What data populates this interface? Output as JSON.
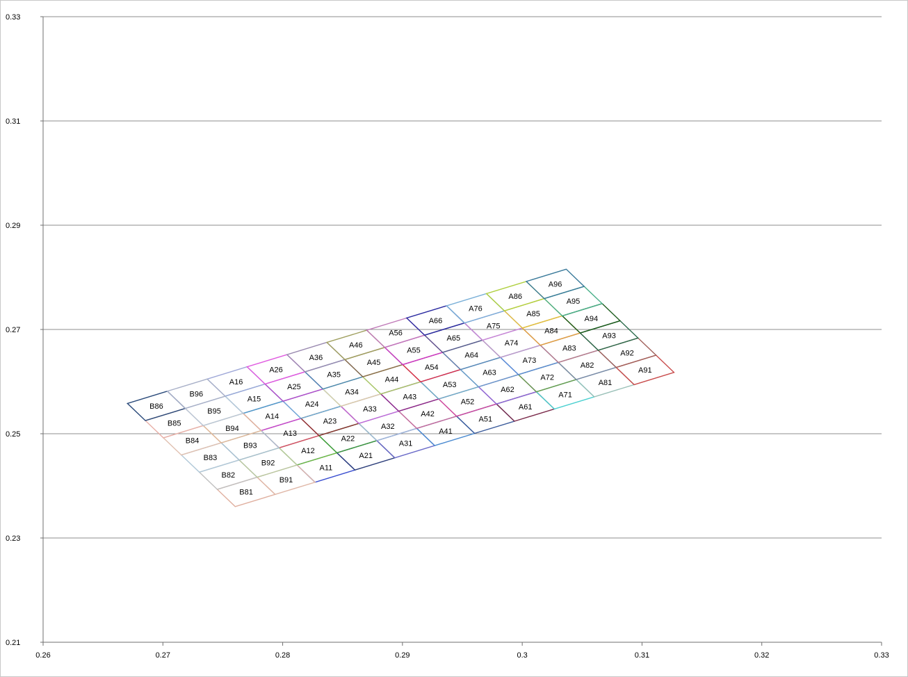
{
  "chart_data": {
    "type": "scatter",
    "title": "",
    "xlabel": "",
    "ylabel": "",
    "xlim": [
      0.26,
      0.33
    ],
    "ylim": [
      0.21,
      0.33
    ],
    "x_ticks": [
      "0.26",
      "0.27",
      "0.28",
      "0.29",
      "0.3",
      "0.31",
      "0.32",
      "0.33"
    ],
    "y_ticks": [
      "0.21",
      "0.23",
      "0.25",
      "0.27",
      "0.29",
      "0.31",
      "0.33"
    ],
    "grid": "horizontal major gridlines",
    "legend": "none",
    "grid_origin": [
      0.2827,
      0.2407
    ],
    "grid_u_step": [
      0.00333,
      0.00234
    ],
    "grid_v_step": [
      -0.0015,
      0.0033
    ],
    "series": [
      {
        "label": "A11",
        "cell": [
          1,
          1
        ],
        "color": "#3b4fd0"
      },
      {
        "label": "A12",
        "cell": [
          1,
          2
        ],
        "color": "#6fbf3a"
      },
      {
        "label": "A13",
        "cell": [
          1,
          3
        ],
        "color": "#d84a6a"
      },
      {
        "label": "A14",
        "cell": [
          1,
          4
        ],
        "color": "#c04ad0"
      },
      {
        "label": "A15",
        "cell": [
          1,
          5
        ],
        "color": "#4aa0c8"
      },
      {
        "label": "A16",
        "cell": [
          1,
          6
        ],
        "color": "#9fa8d8"
      },
      {
        "label": "A21",
        "cell": [
          2,
          1
        ],
        "color": "#2c3e7a"
      },
      {
        "label": "A22",
        "cell": [
          2,
          2
        ],
        "color": "#3a9a3a"
      },
      {
        "label": "A23",
        "cell": [
          2,
          3
        ],
        "color": "#8a3030"
      },
      {
        "label": "A24",
        "cell": [
          2,
          4
        ],
        "color": "#6ab0d8"
      },
      {
        "label": "A25",
        "cell": [
          2,
          5
        ],
        "color": "#b44ac8"
      },
      {
        "label": "A26",
        "cell": [
          2,
          6
        ],
        "color": "#e05ae0"
      },
      {
        "label": "A31",
        "cell": [
          3,
          1
        ],
        "color": "#6a6ac8"
      },
      {
        "label": "A32",
        "cell": [
          3,
          2
        ],
        "color": "#a0b8d8"
      },
      {
        "label": "A33",
        "cell": [
          3,
          3
        ],
        "color": "#c06ad8"
      },
      {
        "label": "A34",
        "cell": [
          3,
          4
        ],
        "color": "#d8d0a8"
      },
      {
        "label": "A35",
        "cell": [
          3,
          5
        ],
        "color": "#4a88b0"
      },
      {
        "label": "A36",
        "cell": [
          3,
          6
        ],
        "color": "#9a8ab0"
      },
      {
        "label": "A41",
        "cell": [
          4,
          1
        ],
        "color": "#4a8ad0"
      },
      {
        "label": "A42",
        "cell": [
          4,
          2
        ],
        "color": "#c86a9a"
      },
      {
        "label": "A43",
        "cell": [
          4,
          3
        ],
        "color": "#8a2a8a"
      },
      {
        "label": "A44",
        "cell": [
          4,
          4
        ],
        "color": "#a8c86a"
      },
      {
        "label": "A45",
        "cell": [
          4,
          5
        ],
        "color": "#8a6a4a"
      },
      {
        "label": "A46",
        "cell": [
          4,
          6
        ],
        "color": "#a0a060"
      },
      {
        "label": "A51",
        "cell": [
          5,
          1
        ],
        "color": "#3a5a9a"
      },
      {
        "label": "A52",
        "cell": [
          5,
          2
        ],
        "color": "#d04aa0"
      },
      {
        "label": "A53",
        "cell": [
          5,
          3
        ],
        "color": "#6ab0c8"
      },
      {
        "label": "A54",
        "cell": [
          5,
          4
        ],
        "color": "#d82a4a"
      },
      {
        "label": "A55",
        "cell": [
          5,
          5
        ],
        "color": "#c83ac8"
      },
      {
        "label": "A56",
        "cell": [
          5,
          6
        ],
        "color": "#c07ab8"
      },
      {
        "label": "A61",
        "cell": [
          6,
          1
        ],
        "color": "#7a2a4a"
      },
      {
        "label": "A62",
        "cell": [
          6,
          2
        ],
        "color": "#8a6ad8"
      },
      {
        "label": "A63",
        "cell": [
          6,
          3
        ],
        "color": "#6a9ac8"
      },
      {
        "label": "A64",
        "cell": [
          6,
          4
        ],
        "color": "#5a8ab8"
      },
      {
        "label": "A65",
        "cell": [
          6,
          5
        ],
        "color": "#5a5a8a"
      },
      {
        "label": "A66",
        "cell": [
          6,
          6
        ],
        "color": "#2a2aa0"
      },
      {
        "label": "A71",
        "cell": [
          7,
          1
        ],
        "color": "#4ad0d0"
      },
      {
        "label": "A72",
        "cell": [
          7,
          2
        ],
        "color": "#6a9a4a"
      },
      {
        "label": "A73",
        "cell": [
          7,
          3
        ],
        "color": "#5a8ad8"
      },
      {
        "label": "A74",
        "cell": [
          7,
          4
        ],
        "color": "#c09ac8"
      },
      {
        "label": "A75",
        "cell": [
          7,
          5
        ],
        "color": "#c888d8"
      },
      {
        "label": "A76",
        "cell": [
          7,
          6
        ],
        "color": "#7ab0d8"
      },
      {
        "label": "A81",
        "cell": [
          8,
          1
        ],
        "color": "#9ac0b8"
      },
      {
        "label": "A82",
        "cell": [
          8,
          2
        ],
        "color": "#7a8aa8"
      },
      {
        "label": "A83",
        "cell": [
          8,
          3
        ],
        "color": "#b87a8a"
      },
      {
        "label": "A84",
        "cell": [
          8,
          4
        ],
        "color": "#e0a040"
      },
      {
        "label": "A85",
        "cell": [
          8,
          5
        ],
        "color": "#e0c040"
      },
      {
        "label": "A86",
        "cell": [
          8,
          6
        ],
        "color": "#b0d040"
      },
      {
        "label": "A91",
        "cell": [
          9,
          1
        ],
        "color": "#c84a4a"
      },
      {
        "label": "A92",
        "cell": [
          9,
          2
        ],
        "color": "#a0605a"
      },
      {
        "label": "A93",
        "cell": [
          9,
          3
        ],
        "color": "#2a6a4a"
      },
      {
        "label": "A94",
        "cell": [
          9,
          4
        ],
        "color": "#1a5a1a"
      },
      {
        "label": "A95",
        "cell": [
          9,
          5
        ],
        "color": "#4ab08a"
      },
      {
        "label": "A96",
        "cell": [
          9,
          6
        ],
        "color": "#3a7a9a"
      },
      {
        "label": "B81",
        "cell": [
          -1,
          1
        ],
        "color": "#e0b0a0"
      },
      {
        "label": "B82",
        "cell": [
          -1,
          2
        ],
        "color": "#c0c0c0"
      },
      {
        "label": "B83",
        "cell": [
          -1,
          3
        ],
        "color": "#b0c8d8"
      },
      {
        "label": "B84",
        "cell": [
          -1,
          4
        ],
        "color": "#e0c0b0"
      },
      {
        "label": "B85",
        "cell": [
          -1,
          5
        ],
        "color": "#e8b0a8"
      },
      {
        "label": "B86",
        "cell": [
          -1,
          6
        ],
        "color": "#2a4a7a"
      },
      {
        "label": "B91",
        "cell": [
          0,
          1
        ],
        "color": "#e0b8a8"
      },
      {
        "label": "B92",
        "cell": [
          0,
          2
        ],
        "color": "#b8c8a0"
      },
      {
        "label": "B93",
        "cell": [
          0,
          3
        ],
        "color": "#a8c0d0"
      },
      {
        "label": "B94",
        "cell": [
          0,
          4
        ],
        "color": "#e0b898"
      },
      {
        "label": "B95",
        "cell": [
          0,
          5
        ],
        "color": "#b8c8d8"
      },
      {
        "label": "B96",
        "cell": [
          0,
          6
        ],
        "color": "#a8b0c8"
      }
    ]
  }
}
